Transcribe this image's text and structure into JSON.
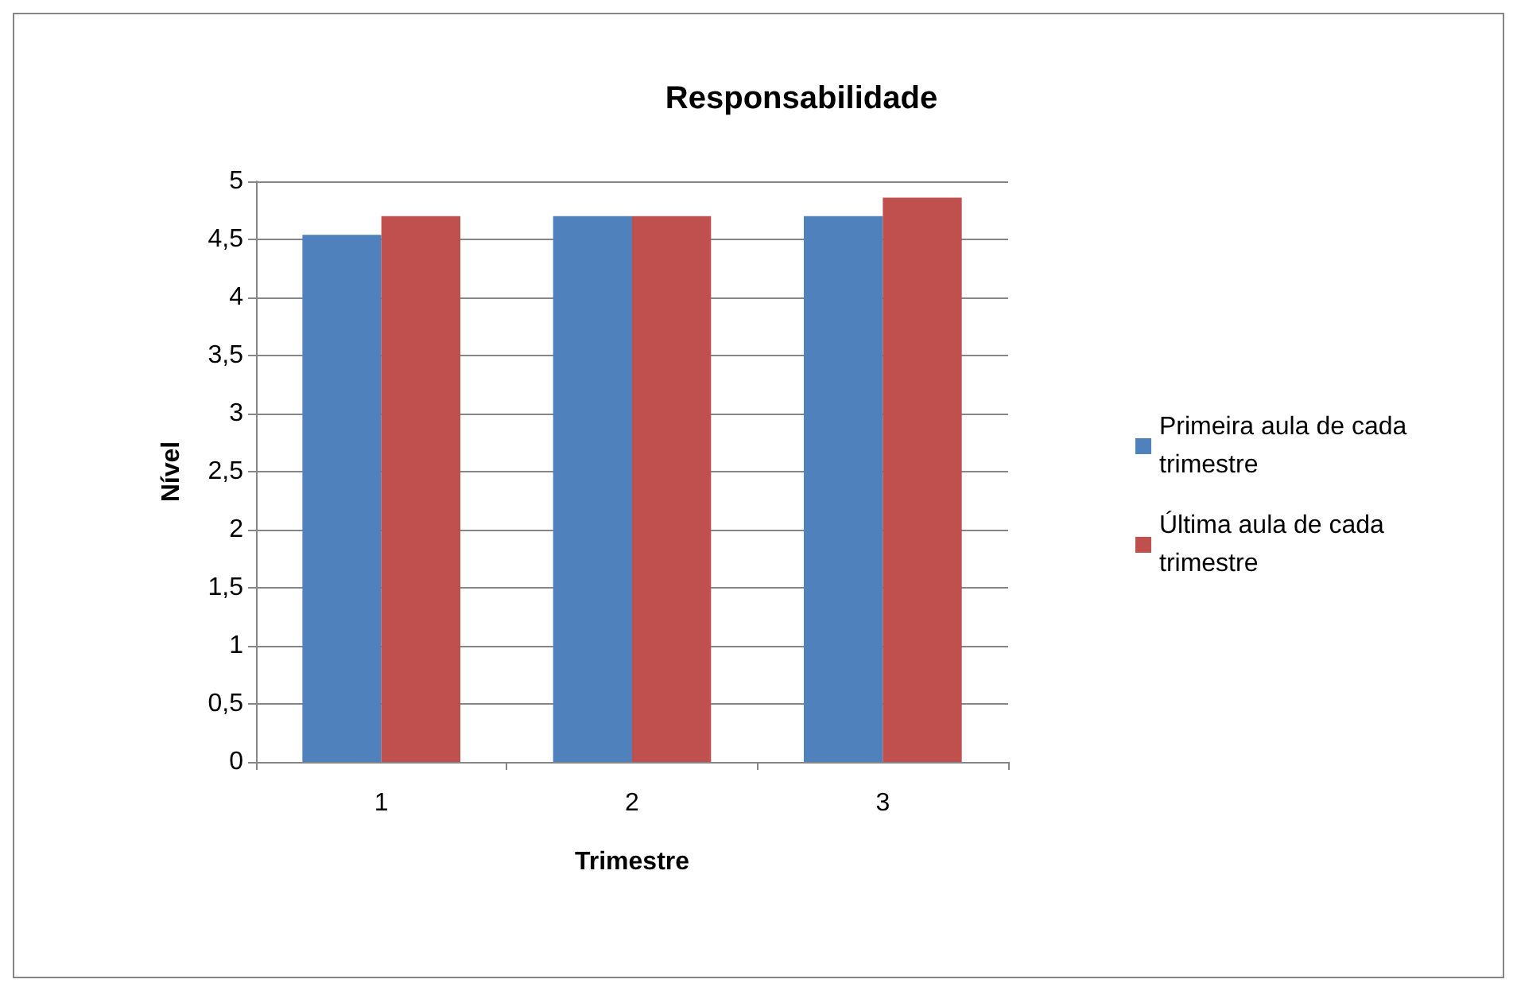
{
  "chart_data": {
    "type": "bar",
    "title": "Responsabilidade",
    "xlabel": "Trimestre",
    "ylabel": "Nível",
    "categories": [
      "1",
      "2",
      "3"
    ],
    "series": [
      {
        "name": "Primeira aula de cada trimestre",
        "color": "#4f81bd",
        "values": [
          4.54,
          4.7,
          4.7
        ]
      },
      {
        "name": "Última aula de cada trimestre",
        "color": "#c0504d",
        "values": [
          4.7,
          4.7,
          4.86
        ]
      }
    ],
    "ylim": [
      0,
      5
    ],
    "yticks": [
      0,
      {
        "value": 0.5,
        "label": "0,5"
      },
      1,
      {
        "value": 1.5,
        "label": "1,5"
      },
      2,
      {
        "value": 2.5,
        "label": "2,5"
      },
      3,
      {
        "value": 3.5,
        "label": "3,5"
      },
      4,
      {
        "value": 4.5,
        "label": "4,5"
      },
      5
    ],
    "grid": "y",
    "legend": "right"
  }
}
